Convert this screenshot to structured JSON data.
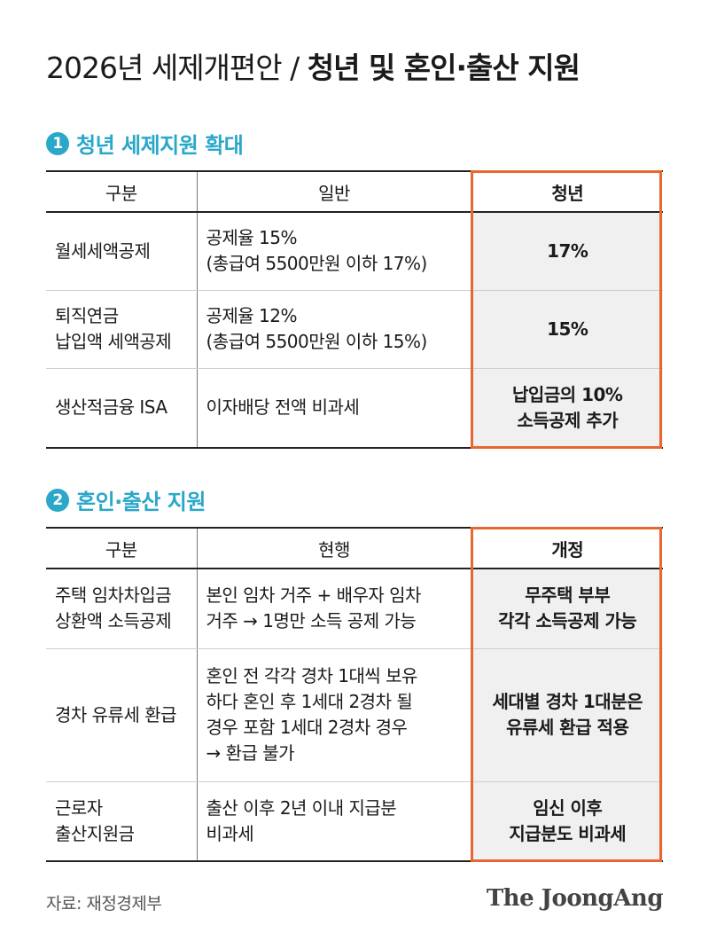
{
  "title": {
    "light": "2026년 세제개편안 / ",
    "bold": "청년 및 혼인·출산 지원"
  },
  "section1": {
    "number": "1",
    "heading": "청년 세제지원 확대",
    "headers": [
      "구분",
      "일반",
      "청년"
    ],
    "rows": [
      {
        "category": "월세세액공제",
        "current": [
          "공제율 15%",
          "(총급여 5500만원 이하 17%)"
        ],
        "new": [
          "17%"
        ]
      },
      {
        "category": "퇴직연금\n납입액 세액공제",
        "current": [
          "공제율 12%",
          "(총급여 5500만원 이하 15%)"
        ],
        "new": [
          "15%"
        ]
      },
      {
        "category": "생산적금융 ISA",
        "current": [
          "이자배당 전액 비과세"
        ],
        "new": [
          "납입금의 10%",
          "소득공제 추가"
        ]
      }
    ]
  },
  "section2": {
    "number": "2",
    "heading": "혼인·출산 지원",
    "headers": [
      "구분",
      "현행",
      "개정"
    ],
    "rows": [
      {
        "category": "주택 임차차입금\n상환액 소득공제",
        "current": [
          "본인 임차 거주 + 배우자 임차",
          "거주 → 1명만 소득 공제 가능"
        ],
        "new": [
          "무주택 부부",
          "각각 소득공제 가능"
        ]
      },
      {
        "category": "경차 유류세 환급",
        "current": [
          "혼인 전 각각 경차 1대씩 보유",
          "하다 혼인 후 1세대 2경차 될",
          "경우 포함  1세대 2경차 경우",
          "→ 환급 불가"
        ],
        "new": [
          "세대별 경차 1대분은",
          "유류세 환급 적용"
        ]
      },
      {
        "category": "근로자\n출산지원금",
        "current": [
          "출산 이후 2년 이내 지급분",
          "비과세"
        ],
        "new": [
          "임신 이후",
          "지급분도 비과세"
        ]
      }
    ]
  },
  "footer": {
    "source": "자료: 재정경제부",
    "brand": "The JoongAng"
  },
  "colors": {
    "accent": "#2aa7c9",
    "highlight_border": "#e8662f",
    "highlight_fill": "#f0f0f0"
  }
}
